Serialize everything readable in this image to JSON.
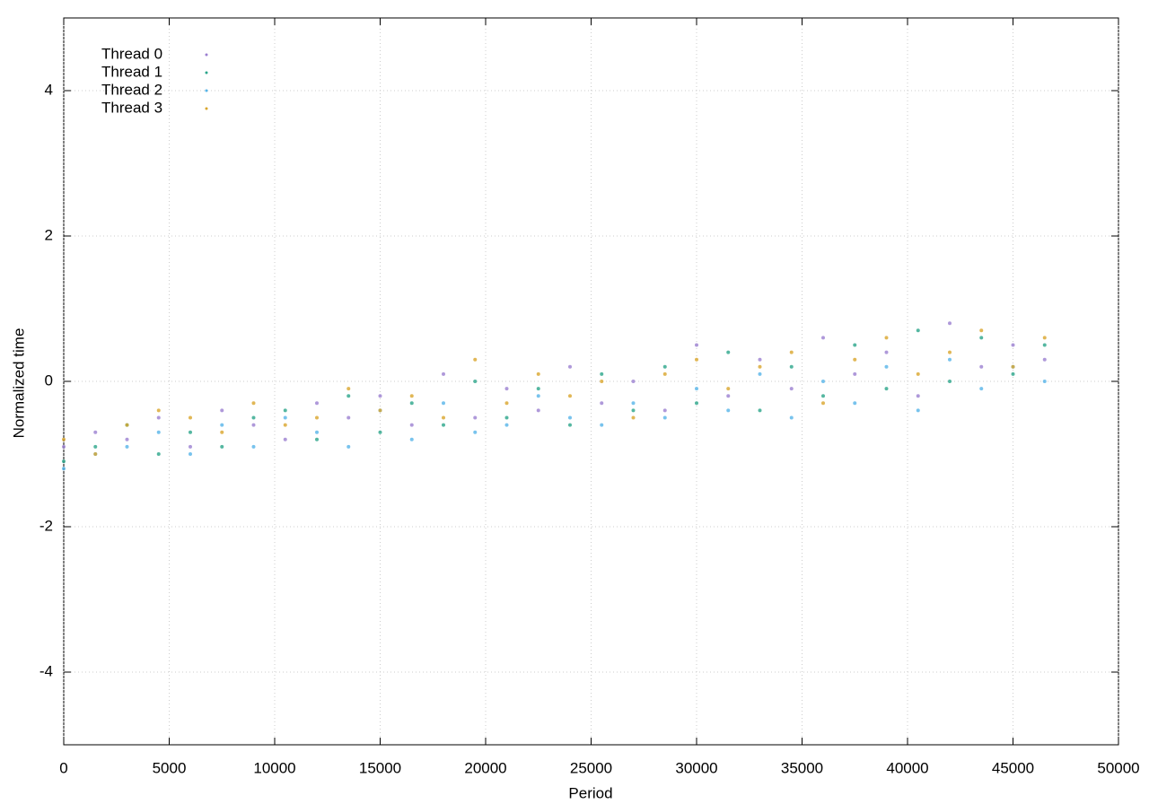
{
  "chart_data": {
    "type": "scatter",
    "xlabel": "Period",
    "ylabel": "Normalized time",
    "x": [
      0,
      1500,
      3000,
      4500,
      6000,
      7500,
      9000,
      10500,
      12000,
      13500,
      15000,
      16500,
      18000,
      19500,
      21000,
      22500,
      24000,
      25500,
      27000,
      28500,
      30000,
      31500,
      33000,
      34500,
      36000,
      37500,
      39000,
      40500,
      42000,
      43500,
      45000,
      46500
    ],
    "series": [
      {
        "name": "Thread 0",
        "color": "#9b7fd1",
        "values": [
          -0.9,
          -0.7,
          -0.8,
          -0.5,
          -0.9,
          -0.4,
          -0.6,
          -0.8,
          -0.3,
          -0.5,
          -0.2,
          -0.6,
          0.1,
          -0.5,
          -0.1,
          -0.4,
          0.2,
          -0.3,
          0.0,
          -0.4,
          0.5,
          -0.2,
          0.3,
          -0.1,
          0.6,
          0.1,
          0.4,
          -0.2,
          0.8,
          0.2,
          0.5,
          0.3
        ]
      },
      {
        "name": "Thread 1",
        "color": "#2aa58a",
        "values": [
          -1.1,
          -0.9,
          -0.6,
          -1.0,
          -0.7,
          -0.9,
          -0.5,
          -0.4,
          -0.8,
          -0.2,
          -0.7,
          -0.3,
          -0.6,
          0.0,
          -0.5,
          -0.1,
          -0.6,
          0.1,
          -0.4,
          0.2,
          -0.3,
          0.4,
          -0.4,
          0.2,
          -0.2,
          0.5,
          -0.1,
          0.7,
          0.0,
          0.6,
          0.1,
          0.5
        ]
      },
      {
        "name": "Thread 2",
        "color": "#56b4e9",
        "values": [
          -1.2,
          -1.0,
          -0.9,
          -0.7,
          -1.0,
          -0.6,
          -0.9,
          -0.5,
          -0.7,
          -0.9,
          -0.4,
          -0.8,
          -0.3,
          -0.7,
          -0.6,
          -0.2,
          -0.5,
          -0.6,
          -0.3,
          -0.5,
          -0.1,
          -0.4,
          0.1,
          -0.5,
          0.0,
          -0.3,
          0.2,
          -0.4,
          0.3,
          -0.1,
          0.2,
          0.0
        ]
      },
      {
        "name": "Thread 3",
        "color": "#d9a52c",
        "values": [
          -0.8,
          -1.0,
          -0.6,
          -0.4,
          -0.5,
          -0.7,
          -0.3,
          -0.6,
          -0.5,
          -0.1,
          -0.4,
          -0.2,
          -0.5,
          0.3,
          -0.3,
          0.1,
          -0.2,
          0.0,
          -0.5,
          0.1,
          0.3,
          -0.1,
          0.2,
          0.4,
          -0.3,
          0.3,
          0.6,
          0.1,
          0.4,
          0.7,
          0.2,
          0.6
        ]
      }
    ],
    "xlim": [
      0,
      50000
    ],
    "xticks": [
      0,
      5000,
      10000,
      15000,
      20000,
      25000,
      30000,
      35000,
      40000,
      45000,
      50000
    ],
    "ylim": [
      -5,
      5
    ],
    "yticks": [
      -4,
      -2,
      0,
      2,
      4
    ],
    "grid": true,
    "legend": "top left"
  }
}
